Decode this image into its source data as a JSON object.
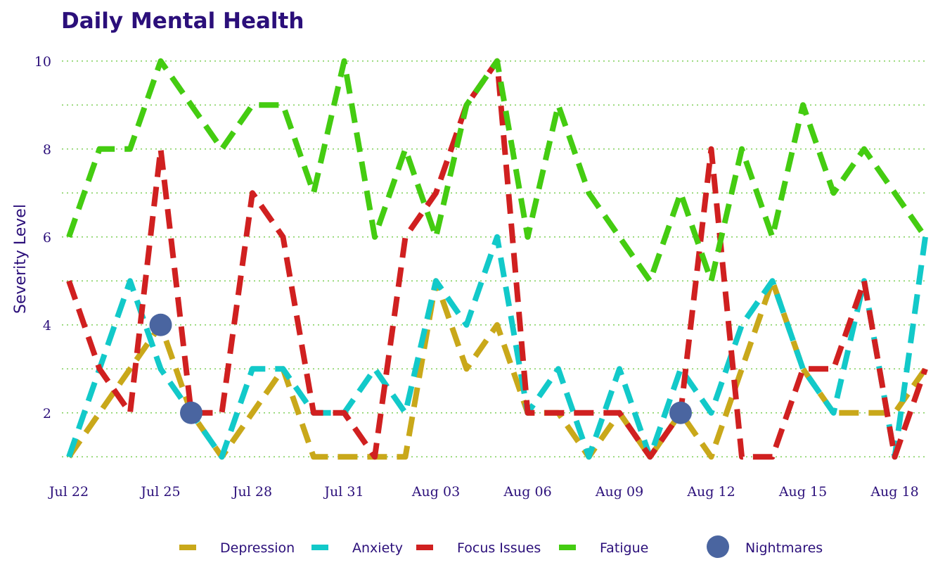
{
  "chart_data": {
    "type": "line",
    "title": "Daily Mental Health",
    "xlabel": "",
    "ylabel": "Severity Level",
    "x": [
      "2024-07-22",
      "2024-07-23",
      "2024-07-24",
      "2024-07-25",
      "2024-07-26",
      "2024-07-27",
      "2024-07-28",
      "2024-07-29",
      "2024-07-30",
      "2024-07-31",
      "2024-08-01",
      "2024-08-02",
      "2024-08-03",
      "2024-08-04",
      "2024-08-05",
      "2024-08-06",
      "2024-08-07",
      "2024-08-08",
      "2024-08-09",
      "2024-08-10",
      "2024-08-11",
      "2024-08-12",
      "2024-08-13",
      "2024-08-14",
      "2024-08-15",
      "2024-08-16",
      "2024-08-17",
      "2024-08-18",
      "2024-08-19"
    ],
    "xticks": [
      "Jul 22",
      "Jul 25",
      "Jul 28",
      "Jul 31",
      "Aug 03",
      "Aug 06",
      "Aug 09",
      "Aug 12",
      "Aug 15",
      "Aug 18"
    ],
    "yticks": [
      2,
      4,
      6,
      8,
      10
    ],
    "ylim": [
      0.7,
      10.3
    ],
    "grid": true,
    "legend": "bottom",
    "series": [
      {
        "name": "Depression",
        "color": "#c9a81a",
        "values": [
          1,
          2,
          3,
          4,
          2,
          1,
          2,
          3,
          1,
          1,
          1,
          1,
          5,
          3,
          4,
          2,
          2,
          1,
          2,
          1,
          2,
          1,
          3,
          5,
          3,
          2,
          2,
          2,
          3
        ]
      },
      {
        "name": "Anxiety",
        "color": "#12c9c9",
        "values": [
          1,
          3,
          5,
          3,
          2,
          1,
          3,
          3,
          2,
          2,
          3,
          2,
          5,
          4,
          6,
          2,
          3,
          1,
          3,
          1,
          3,
          2,
          4,
          5,
          3,
          2,
          5,
          1,
          6
        ]
      },
      {
        "name": "Focus Issues",
        "color": "#d02020",
        "values": [
          5,
          3,
          2,
          8,
          2,
          2,
          7,
          6,
          2,
          2,
          1,
          6,
          7,
          9,
          10,
          2,
          2,
          2,
          2,
          1,
          2,
          8,
          1,
          1,
          3,
          3,
          5,
          1,
          3
        ]
      },
      {
        "name": "Fatigue",
        "color": "#44cc11",
        "values": [
          6,
          8,
          8,
          10,
          9,
          8,
          9,
          9,
          7,
          10,
          6,
          8,
          6,
          9,
          10,
          6,
          9,
          7,
          6,
          5,
          7,
          5,
          8,
          6,
          9,
          7,
          8,
          7,
          6
        ]
      }
    ],
    "markers": {
      "name": "Nightmares",
      "color": "#4a65a0",
      "points": [
        {
          "x": "2024-07-25",
          "y": 4
        },
        {
          "x": "2024-07-26",
          "y": 2
        },
        {
          "x": "2024-08-11",
          "y": 2
        }
      ]
    }
  }
}
